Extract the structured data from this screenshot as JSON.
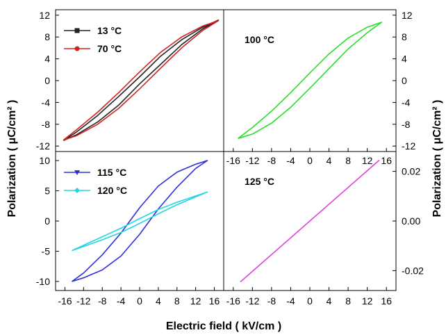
{
  "figure": {
    "xlabel": "Electric field ( kV/cm )",
    "ylabel_left": "Polarization ( μC/cm² )",
    "ylabel_right": "Polarization ( μC/cm² )"
  },
  "chart_data": [
    {
      "type": "line",
      "panel": "top-left",
      "xlim": [
        -16,
        16
      ],
      "ylim": [
        -13,
        13
      ],
      "xticks": [],
      "yticks": [
        -12,
        -8,
        -4,
        0,
        4,
        8,
        12
      ],
      "ytick_side": "left",
      "legend": "top-left",
      "annotation": "",
      "series": [
        {
          "name": "13 °C",
          "color": "#222222",
          "marker": "square",
          "upper": [
            [
              -14.5,
              -11
            ],
            [
              -12,
              -9.4
            ],
            [
              -8,
              -6.4
            ],
            [
              -4,
              -2.9
            ],
            [
              0,
              0.7
            ],
            [
              4,
              4.5
            ],
            [
              8,
              7.5
            ],
            [
              12,
              9.8
            ],
            [
              15,
              11.1
            ]
          ],
          "lower": [
            [
              15,
              11.1
            ],
            [
              12,
              9.5
            ],
            [
              8,
              6.6
            ],
            [
              4,
              3.0
            ],
            [
              0,
              -0.6
            ],
            [
              -4,
              -4.5
            ],
            [
              -8,
              -7.6
            ],
            [
              -12,
              -9.9
            ],
            [
              -14.5,
              -11
            ]
          ]
        },
        {
          "name": "70 °C",
          "color": "#d42020",
          "marker": "circle",
          "upper": [
            [
              -14.5,
              -10.9
            ],
            [
              -12,
              -9.0
            ],
            [
              -8,
              -5.8
            ],
            [
              -4,
              -2.2
            ],
            [
              0,
              1.6
            ],
            [
              4,
              5.2
            ],
            [
              8,
              8.0
            ],
            [
              12,
              10.0
            ],
            [
              15,
              11.0
            ]
          ],
          "lower": [
            [
              15,
              11.0
            ],
            [
              12,
              9.2
            ],
            [
              8,
              6.0
            ],
            [
              4,
              2.3
            ],
            [
              0,
              -1.5
            ],
            [
              -4,
              -5.1
            ],
            [
              -8,
              -8.0
            ],
            [
              -12,
              -10.1
            ],
            [
              -14.5,
              -10.9
            ]
          ]
        }
      ]
    },
    {
      "type": "line",
      "panel": "top-right",
      "xlim": [
        -18,
        18
      ],
      "ylim": [
        -13,
        13
      ],
      "xticks": [
        -16,
        -12,
        -8,
        -4,
        0,
        4,
        8,
        12,
        16
      ],
      "yticks": [
        -12,
        -8,
        -4,
        0,
        4,
        8,
        12
      ],
      "ytick_side": "right",
      "legend": "",
      "annotation": "100 °C",
      "series": [
        {
          "name": "",
          "color": "#22e022",
          "marker": "none",
          "upper": [
            [
              -15,
              -10.6
            ],
            [
              -12,
              -8.6
            ],
            [
              -8,
              -5.6
            ],
            [
              -4,
              -2.2
            ],
            [
              0,
              1.4
            ],
            [
              4,
              4.9
            ],
            [
              8,
              7.8
            ],
            [
              12,
              9.8
            ],
            [
              15,
              10.7
            ]
          ],
          "lower": [
            [
              15,
              10.7
            ],
            [
              12,
              8.8
            ],
            [
              8,
              5.8
            ],
            [
              4,
              2.2
            ],
            [
              0,
              -1.4
            ],
            [
              -4,
              -4.9
            ],
            [
              -8,
              -7.8
            ],
            [
              -12,
              -9.8
            ],
            [
              -15,
              -10.6
            ]
          ]
        }
      ]
    },
    {
      "type": "line",
      "panel": "bottom-left",
      "xlim": [
        -18,
        18
      ],
      "ylim": [
        -11.5,
        11.5
      ],
      "xticks": [
        -16,
        -12,
        -8,
        -4,
        0,
        4,
        8,
        12,
        16
      ],
      "yticks": [
        -10,
        -5,
        0,
        5,
        10
      ],
      "ytick_side": "left",
      "legend": "top-left",
      "annotation": "",
      "series": [
        {
          "name": "115 °C",
          "color": "#2f2fd8",
          "marker": "triangle-down",
          "upper": [
            [
              -14.5,
              -10.0
            ],
            [
              -12,
              -8.6
            ],
            [
              -8,
              -5.6
            ],
            [
              -4,
              -2.0
            ],
            [
              0,
              2.2
            ],
            [
              4,
              5.8
            ],
            [
              8,
              8.1
            ],
            [
              12,
              9.4
            ],
            [
              14.5,
              10.0
            ]
          ],
          "lower": [
            [
              14.5,
              10.0
            ],
            [
              12,
              8.7
            ],
            [
              8,
              5.6
            ],
            [
              4,
              2.0
            ],
            [
              0,
              -2.2
            ],
            [
              -4,
              -5.8
            ],
            [
              -8,
              -8.1
            ],
            [
              -12,
              -9.4
            ],
            [
              -14.5,
              -10.0
            ]
          ]
        },
        {
          "name": "120 °C",
          "color": "#22d6e0",
          "marker": "diamond",
          "upper": [
            [
              -14.5,
              -4.9
            ],
            [
              -8,
              -2.6
            ],
            [
              -4,
              -1.2
            ],
            [
              0,
              0.4
            ],
            [
              4,
              1.9
            ],
            [
              8,
              3.1
            ],
            [
              14.5,
              4.8
            ]
          ],
          "lower": [
            [
              14.5,
              4.8
            ],
            [
              8,
              2.7
            ],
            [
              4,
              1.2
            ],
            [
              0,
              -0.4
            ],
            [
              -4,
              -1.9
            ],
            [
              -8,
              -3.1
            ],
            [
              -14.5,
              -4.9
            ]
          ]
        }
      ]
    },
    {
      "type": "line",
      "panel": "bottom-right",
      "xlim": [
        -18,
        18
      ],
      "ylim": [
        -0.028,
        0.028
      ],
      "xticks": [
        -16,
        -12,
        -8,
        -4,
        0,
        4,
        8,
        12,
        16
      ],
      "yticks": [
        -0.02,
        0.0,
        0.02
      ],
      "ytick_labels": [
        "-0.02",
        "0.00",
        "0.02"
      ],
      "ytick_side": "right",
      "legend": "",
      "annotation": "125 °C",
      "series": [
        {
          "name": "",
          "color": "#e040e0",
          "marker": "none",
          "upper": [
            [
              -14.5,
              -0.0245
            ],
            [
              14.5,
              0.0245
            ]
          ],
          "lower": []
        }
      ]
    }
  ]
}
